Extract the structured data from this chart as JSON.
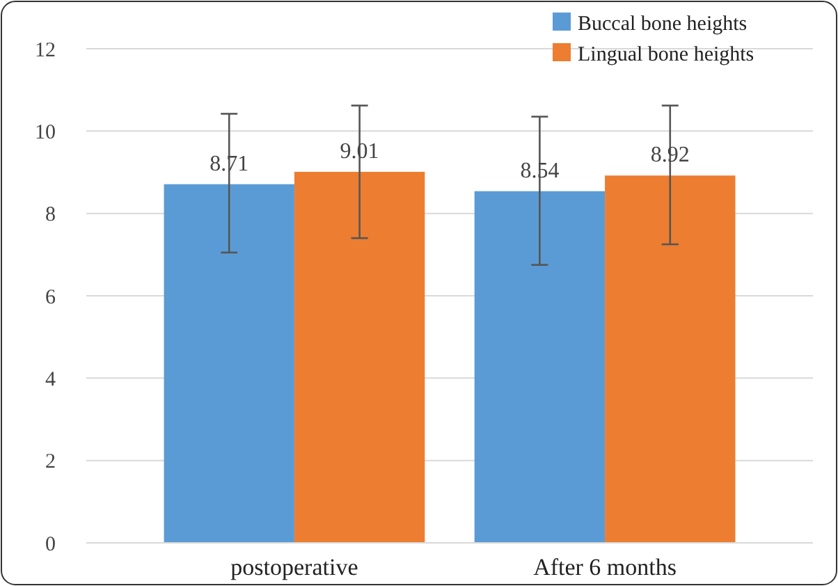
{
  "chart_data": {
    "type": "bar",
    "categories": [
      "postoperative",
      "After 6 months"
    ],
    "series": [
      {
        "name": "Buccal bone heights",
        "color": "#5b9bd5",
        "values": [
          8.71,
          8.54
        ],
        "errors": [
          [
            7.05,
            10.42
          ],
          [
            6.75,
            10.35
          ]
        ]
      },
      {
        "name": "Lingual bone heights",
        "color": "#ed7d31",
        "values": [
          9.01,
          8.92
        ],
        "errors": [
          [
            7.4,
            10.62
          ],
          [
            7.25,
            10.62
          ]
        ]
      }
    ],
    "ylim": [
      0,
      12
    ],
    "yticks": [
      0,
      2,
      4,
      6,
      8,
      10,
      12
    ],
    "grid": "y",
    "legend": "top right",
    "data_labels": true
  }
}
